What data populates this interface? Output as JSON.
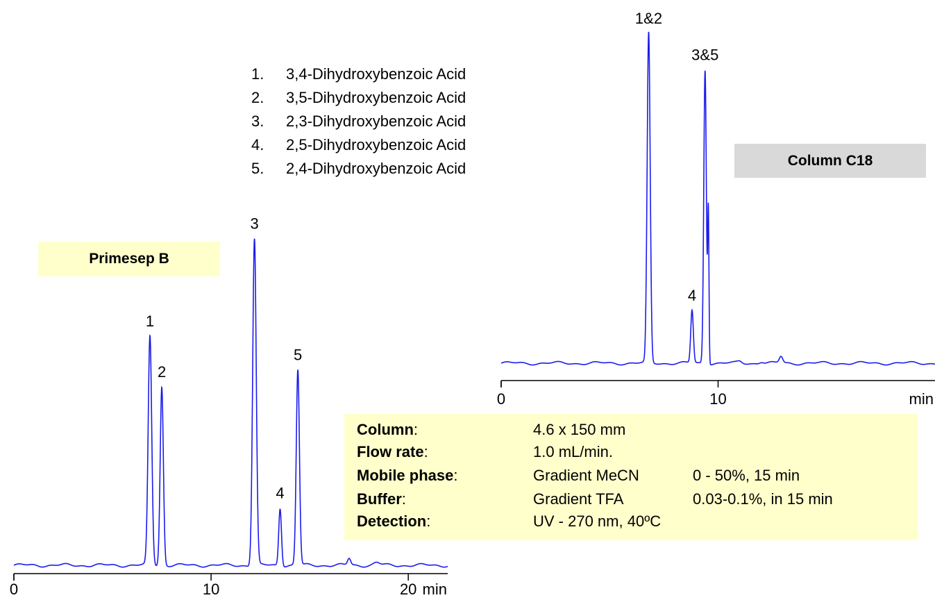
{
  "legend": [
    {
      "num": "1.",
      "name": "3,4-Dihydroxybenzoic Acid"
    },
    {
      "num": "2.",
      "name": "3,5-Dihydroxybenzoic Acid"
    },
    {
      "num": "3.",
      "name": "2,3-Dihydroxybenzoic Acid"
    },
    {
      "num": "4.",
      "name": "2,5-Dihydroxybenzoic Acid"
    },
    {
      "num": "5.",
      "name": "2,4-Dihydroxybenzoic Acid"
    }
  ],
  "colors": {
    "trace": "#1a1aee",
    "axis": "#000000",
    "primesep_box": "#ffffcc",
    "c18_box": "#d9d9d9",
    "conditions_box": "#ffffcc"
  },
  "chart_data": [
    {
      "type": "line",
      "title": "Primesep B",
      "xlabel": "min",
      "xlim": [
        0,
        22
      ],
      "xticks": [
        0,
        10,
        20
      ],
      "tick_labels": [
        "0",
        "10",
        "20"
      ],
      "ylim": [
        0,
        100
      ],
      "peaks": [
        {
          "label": "1",
          "rt": 6.9,
          "height": 68,
          "width": 0.09
        },
        {
          "label": "2",
          "rt": 7.5,
          "height": 53,
          "width": 0.08
        },
        {
          "label": "3",
          "rt": 12.2,
          "height": 97,
          "width": 0.09
        },
        {
          "label": "4",
          "rt": 13.5,
          "height": 17,
          "width": 0.07
        },
        {
          "label": "5",
          "rt": 14.4,
          "height": 58,
          "width": 0.08
        },
        {
          "label": "",
          "rt": 17.0,
          "height": 2,
          "width": 0.08
        },
        {
          "label": "",
          "rt": 18.4,
          "height": 0.8,
          "width": 0.15
        }
      ]
    },
    {
      "type": "line",
      "title": "Column  C18",
      "xlabel": "min",
      "xlim": [
        0,
        20
      ],
      "xticks": [
        0,
        10
      ],
      "tick_labels": [
        "0",
        "10"
      ],
      "ylim": [
        0,
        100
      ],
      "peaks": [
        {
          "label": "1&2",
          "rt": 6.8,
          "height": 100,
          "width": 0.07
        },
        {
          "label": "4",
          "rt": 8.8,
          "height": 16,
          "width": 0.06
        },
        {
          "label": "3&5",
          "rt": 9.4,
          "height": 89,
          "width": 0.06
        },
        {
          "label": "",
          "rt": 9.55,
          "height": 45,
          "width": 0.03
        },
        {
          "label": "",
          "rt": 12.9,
          "height": 2,
          "width": 0.08
        },
        {
          "label": "",
          "rt": 11.0,
          "height": 0.5,
          "width": 0.1
        },
        {
          "label": "",
          "rt": 12.0,
          "height": 0.5,
          "width": 0.1
        }
      ]
    }
  ],
  "conditions": [
    {
      "key": "Column",
      "sep": ":",
      "v1": "4.6 x 150 mm",
      "v2": ""
    },
    {
      "key": "Flow rate",
      "sep": ":",
      "v1": "1.0 mL/min.",
      "v2": ""
    },
    {
      "key": "Mobile phase",
      "sep": ":",
      "v1": "Gradient MeCN",
      "v2": "0 - 50%, 15 min"
    },
    {
      "key": "Buffer",
      "sep": ":",
      "v1": "Gradient TFA",
      "v2": "0.03-0.1%, in 15 min"
    },
    {
      "key": "Detection",
      "sep": ":",
      "v1": "UV - 270 nm, 40ºC",
      "v2": ""
    }
  ]
}
